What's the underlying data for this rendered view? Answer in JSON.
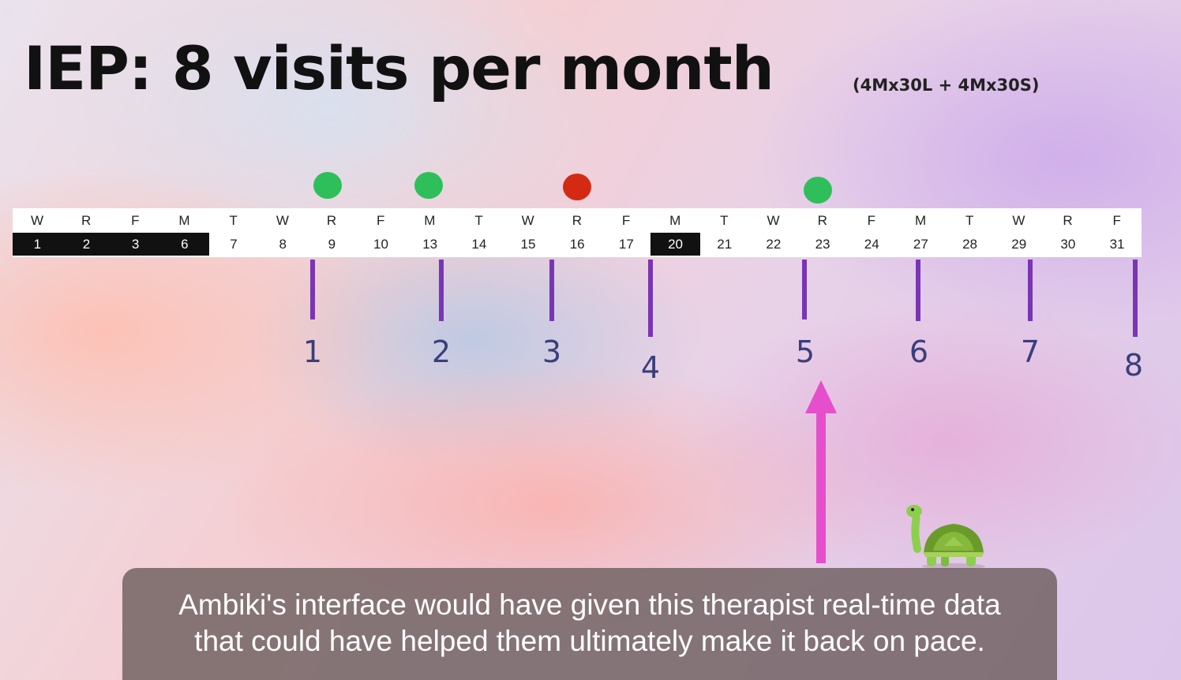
{
  "title": "IEP: 8 visits per month",
  "subtitle": "(4Mx30L + 4Mx30S)",
  "calendar": {
    "days": [
      {
        "dow": "W",
        "num": "1",
        "dark": true
      },
      {
        "dow": "R",
        "num": "2",
        "dark": true
      },
      {
        "dow": "F",
        "num": "3",
        "dark": true
      },
      {
        "dow": "M",
        "num": "6",
        "dark": true
      },
      {
        "dow": "T",
        "num": "7",
        "dark": false
      },
      {
        "dow": "W",
        "num": "8",
        "dark": false
      },
      {
        "dow": "R",
        "num": "9",
        "dark": false
      },
      {
        "dow": "F",
        "num": "10",
        "dark": false
      },
      {
        "dow": "M",
        "num": "13",
        "dark": false
      },
      {
        "dow": "T",
        "num": "14",
        "dark": false
      },
      {
        "dow": "W",
        "num": "15",
        "dark": false
      },
      {
        "dow": "R",
        "num": "16",
        "dark": false
      },
      {
        "dow": "F",
        "num": "17",
        "dark": false
      },
      {
        "dow": "M",
        "num": "20",
        "dark": true
      },
      {
        "dow": "T",
        "num": "21",
        "dark": false
      },
      {
        "dow": "W",
        "num": "22",
        "dark": false
      },
      {
        "dow": "R",
        "num": "23",
        "dark": false
      },
      {
        "dow": "F",
        "num": "24",
        "dark": false
      },
      {
        "dow": "M",
        "num": "27",
        "dark": false
      },
      {
        "dow": "T",
        "num": "28",
        "dark": false
      },
      {
        "dow": "W",
        "num": "29",
        "dark": false
      },
      {
        "dow": "R",
        "num": "30",
        "dark": false
      },
      {
        "dow": "F",
        "num": "31",
        "dark": false
      }
    ]
  },
  "visit_markers": [
    {
      "day": "9",
      "status": "green"
    },
    {
      "day": "13",
      "status": "green"
    },
    {
      "day": "16",
      "status": "red"
    },
    {
      "day": "23",
      "status": "green"
    }
  ],
  "pace_targets": [
    "1",
    "2",
    "3",
    "4",
    "5",
    "6",
    "7",
    "8"
  ],
  "colors": {
    "attended": "#2fbf5a",
    "missed": "#d42a14",
    "target_tick": "#7a35b5",
    "arrow": "#e54fcc",
    "closed_day": "#111111"
  },
  "icons": [
    "turtle-icon",
    "up-arrow-icon"
  ],
  "caption": {
    "line1": "Ambiki's interface would have given this therapist real-time data",
    "line2": "that could have helped them ultimately make it back on pace."
  }
}
